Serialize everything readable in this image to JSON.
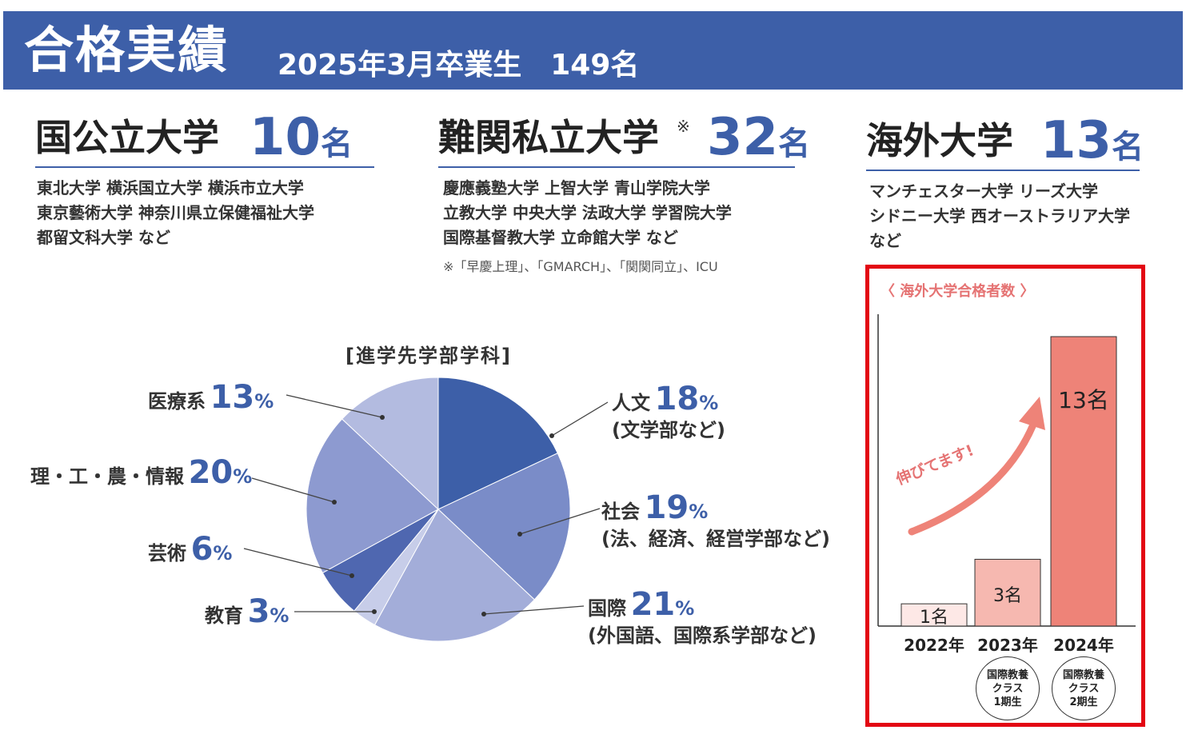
{
  "header": {
    "title": "合格実績",
    "subtitle": "2025年3月卒業生　149名"
  },
  "categories": [
    {
      "name": "国公立大学",
      "count": "10",
      "unit": "名",
      "lines": [
        "東北大学 横浜国立大学 横浜市立大学",
        "東京藝術大学 神奈川県立保健福祉大学",
        "都留文科大学 など"
      ]
    },
    {
      "name": "難関私立大学",
      "mark": "※",
      "count": "32",
      "unit": "名",
      "lines": [
        "慶應義塾大学 上智大学 青山学院大学",
        "立教大学 中央大学 法政大学 学習院大学",
        "国際基督教大学 立命館大学 など"
      ],
      "note": "※「早慶上理」、「GMARCH」、「関関同立」、ICU"
    },
    {
      "name": "海外大学",
      "count": "13",
      "unit": "名",
      "lines": [
        "マンチェスター大学 リーズ大学",
        "シドニー大学 西オーストラリア大学",
        "など"
      ]
    }
  ],
  "chart_data": [
    {
      "type": "pie",
      "title": "[進学先学部学科]",
      "slices": [
        {
          "name": "人文",
          "sub": "(文学部など)",
          "value": 18,
          "color": "#3d5fa8"
        },
        {
          "name": "社会",
          "sub": "(法、経済、経営学部など)",
          "value": 19,
          "color": "#7a8cc8"
        },
        {
          "name": "国際",
          "sub": "(外国語、国際系学部など)",
          "value": 21,
          "color": "#a3add9"
        },
        {
          "name": "教育",
          "sub": "",
          "value": 3,
          "color": "#c7cde9"
        },
        {
          "name": "芸術",
          "sub": "",
          "value": 6,
          "color": "#4f67b0"
        },
        {
          "name": "理・工・農・情報",
          "sub": "",
          "value": 20,
          "color": "#8d9ad0"
        },
        {
          "name": "医療系",
          "sub": "",
          "value": 13,
          "color": "#b3bbe0"
        }
      ],
      "unit": "%"
    },
    {
      "type": "bar",
      "title": "〈 海外大学合格者数 〉",
      "categories": [
        "2022年",
        "2023年",
        "2024年"
      ],
      "values": [
        1,
        3,
        13
      ],
      "value_labels": [
        "1名",
        "3名",
        "13名"
      ],
      "unit": "名",
      "colors": [
        "#fde8e6",
        "#f6b8b0",
        "#ee8378"
      ],
      "annotation": "伸びてます!",
      "notes": [
        {
          "category": "2023年",
          "lines": [
            "国際教養",
            "クラス",
            "1期生"
          ]
        },
        {
          "category": "2024年",
          "lines": [
            "国際教養",
            "クラス",
            "2期生"
          ]
        }
      ]
    }
  ]
}
